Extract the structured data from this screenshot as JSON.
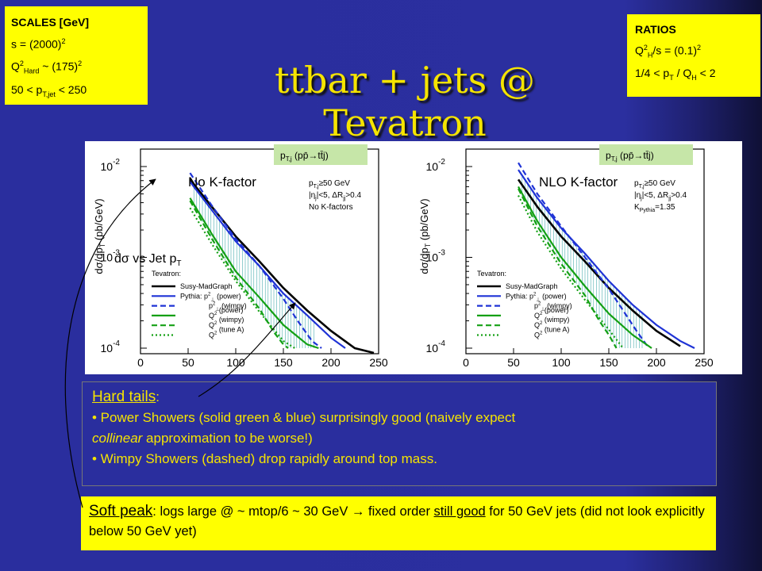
{
  "title": "ttbar + jets @ Tevatron",
  "scales": {
    "heading": "SCALES [GeV]",
    "line1": "s = (2000)",
    "line1_sup": "2",
    "line2_a": "Q",
    "line2_sup": "2",
    "line2_sub": "Hard",
    "line2_b": " ~ (175)",
    "line2_sup2": "2",
    "line3_a": "50 < p",
    "line3_sub": "T,jet",
    "line3_b": " < 250"
  },
  "ratios": {
    "heading": "RATIOS",
    "line1_a": "Q",
    "line1_sup": "2",
    "line1_sub": "H",
    "line1_b": "/s = (0.1)",
    "line1_sup2": "2",
    "line2_a": "1/4 < p",
    "line2_sub": "T",
    "line2_b": " / Q",
    "line2_sub2": "H",
    "line2_c": " < 2"
  },
  "annotations": {
    "left_panel": "No K-factor",
    "right_panel": "NLO K-factor",
    "left_sub": "dσ vs Jet p",
    "left_sub_t": "T"
  },
  "hard": {
    "title": "Hard tails",
    "title_colon": ":",
    "b1_a": "• Power Showers (solid green & blue) surprisingly good (naively expect",
    "b1_b": "collinear",
    "b1_c": " approximation to be worse!)",
    "b2": "• Wimpy Showers (dashed) drop rapidly around top mass."
  },
  "soft": {
    "title": "Soft peak",
    "part1": ": logs large @ ~ mtop/6 ~ 30 GeV ",
    "arrow": "→",
    "part2": " fixed order ",
    "underline": "still good",
    "part3": " for 50 GeV jets (did not look explicitly below 50 GeV yet)"
  },
  "chart_data": [
    {
      "type": "line",
      "ylabel": "dσ/dp",
      "ylabel_sub": "T",
      "ylabel_unit": "(pb/GeV)",
      "yscale": "log",
      "ylim": [
        0.0001,
        0.01
      ],
      "xlim": [
        0,
        250
      ],
      "x_ticks": [
        0,
        50,
        100,
        150,
        200,
        250
      ],
      "y_ticks": [
        {
          "base": "10",
          "exp": "-2",
          "value": 0.01
        },
        {
          "base": "10",
          "exp": "-3",
          "value": 0.001
        },
        {
          "base": "10",
          "exp": "-4",
          "value": 0.0001
        }
      ],
      "legend_tag": {
        "a": "p",
        "sub": "T,j",
        "b": " (pp̄→tt̄j)"
      },
      "cuts": [
        {
          "a": "p",
          "sub": "T,j",
          "b": "≥50 GeV"
        },
        {
          "a": "|η",
          "sub": "j",
          "b": "|<5, ΔR",
          "sub2": "jj",
          "c": ">0.4"
        },
        {
          "a": "No K-factors"
        }
      ],
      "legend_title": "Tevatron:",
      "legend_entries": [
        {
          "label": "Susy-MadGraph"
        },
        {
          "label": "Pythia: p",
          "sup": "2",
          "sub": "⊥",
          "rest": " (power)"
        },
        {
          "label": "p",
          "sup": "2",
          "sub": "⊥",
          "rest": " (wimpy)"
        },
        {
          "label": "Q",
          "sup": "2",
          "rest": " (power)"
        },
        {
          "label": "Q",
          "sup": "2",
          "rest": " (wimpy)"
        },
        {
          "label": "Q",
          "sup": "2",
          "rest": " (tune A)"
        }
      ],
      "series": [
        {
          "name": "Susy-MadGraph",
          "color": "#000000",
          "dash": "solid",
          "x": [
            52,
            75,
            100,
            125,
            150,
            175,
            200,
            225,
            245
          ],
          "y": [
            0.0072,
            0.0036,
            0.0017,
            0.0009,
            0.00046,
            0.00026,
            0.000155,
            0.0001,
            8e-05
          ]
        },
        {
          "name": "Pythia p⊥² (power)",
          "color": "#1f33d6",
          "dash": "solid",
          "x": [
            52,
            75,
            100,
            125,
            150,
            175,
            200,
            215
          ],
          "y": [
            0.0068,
            0.0033,
            0.0015,
            0.0008,
            0.0004,
            0.00023,
            0.00013,
            0.0001
          ]
        },
        {
          "name": "Pythia p⊥² (wimpy)",
          "color": "#1f33d6",
          "dash": "dashed",
          "x": [
            52,
            75,
            100,
            125,
            150,
            165,
            180,
            190
          ],
          "y": [
            0.0085,
            0.0037,
            0.0016,
            0.0008,
            0.00035,
            0.0002,
            0.00012,
            0.0001
          ]
        },
        {
          "name": "Q² (power)",
          "color": "#14a014",
          "dash": "solid",
          "x": [
            52,
            75,
            100,
            125,
            150,
            175,
            187
          ],
          "y": [
            0.0045,
            0.0018,
            0.0007,
            0.00036,
            0.00018,
            0.00011,
            0.0001
          ]
        },
        {
          "name": "Q² (wimpy)",
          "color": "#14a014",
          "dash": "dashed",
          "x": [
            52,
            75,
            100,
            125,
            140,
            150,
            155
          ],
          "y": [
            0.0042,
            0.0016,
            0.0006,
            0.00027,
            0.00015,
            0.00011,
            0.0001
          ]
        },
        {
          "name": "Q² (tune A)",
          "color": "#14a014",
          "dash": "dotted",
          "x": [
            52,
            75,
            100,
            125,
            150,
            162
          ],
          "y": [
            0.0035,
            0.0014,
            0.00055,
            0.00025,
            0.00012,
            0.0001
          ]
        }
      ]
    },
    {
      "type": "line",
      "ylabel": "dσ/dp",
      "ylabel_sub": "T",
      "ylabel_unit": "(pb/GeV)",
      "yscale": "log",
      "ylim": [
        0.0001,
        0.01
      ],
      "xlim": [
        0,
        250
      ],
      "x_ticks": [
        0,
        50,
        100,
        150,
        200,
        250
      ],
      "y_ticks": [
        {
          "base": "10",
          "exp": "-2",
          "value": 0.01
        },
        {
          "base": "10",
          "exp": "-3",
          "value": 0.001
        },
        {
          "base": "10",
          "exp": "-4",
          "value": 0.0001
        }
      ],
      "legend_tag": {
        "a": "p",
        "sub": "T,j",
        "b": " (pp̄→tt̄j)"
      },
      "cuts": [
        {
          "a": "p",
          "sub": "T,j",
          "b": "≥50 GeV"
        },
        {
          "a": "|η",
          "sub": "j",
          "b": "|<5, ΔR",
          "sub2": "jj",
          "c": ">0.4"
        },
        {
          "a": "K",
          "sub": "Pythia",
          "b": "=1.35"
        }
      ],
      "legend_title": "Tevatron:",
      "legend_entries": [
        {
          "label": "Susy-MadGraph"
        },
        {
          "label": "Pythia: p",
          "sup": "2",
          "sub": "⊥",
          "rest": " (power)"
        },
        {
          "label": "p",
          "sup": "2",
          "sub": "⊥",
          "rest": " (wimpy)"
        },
        {
          "label": "Q",
          "sup": "2",
          "rest": " (power)"
        },
        {
          "label": "Q",
          "sup": "2",
          "rest": " (wimpy)"
        },
        {
          "label": "Q",
          "sup": "2",
          "rest": " (tune A)"
        }
      ],
      "series": [
        {
          "name": "Susy-MadGraph",
          "color": "#000000",
          "dash": "solid",
          "x": [
            55,
            75,
            100,
            125,
            150,
            175,
            200,
            225
          ],
          "y": [
            0.0072,
            0.0036,
            0.0017,
            0.0009,
            0.00046,
            0.00026,
            0.000155,
            0.000105
          ]
        },
        {
          "name": "Pythia p⊥² (power)",
          "color": "#1f33d6",
          "dash": "solid",
          "x": [
            55,
            75,
            100,
            125,
            150,
            175,
            200,
            225,
            240
          ],
          "y": [
            0.0092,
            0.0045,
            0.0021,
            0.0011,
            0.00055,
            0.0003,
            0.00018,
            0.00012,
            0.0001
          ]
        },
        {
          "name": "Pythia p⊥² (wimpy)",
          "color": "#1f33d6",
          "dash": "dashed",
          "x": [
            55,
            75,
            100,
            125,
            150,
            165,
            180,
            192
          ],
          "y": [
            0.011,
            0.005,
            0.0022,
            0.001,
            0.00045,
            0.00026,
            0.00015,
            0.0001
          ]
        },
        {
          "name": "Q² (power)",
          "color": "#14a014",
          "dash": "solid",
          "x": [
            55,
            75,
            100,
            125,
            150,
            175,
            195
          ],
          "y": [
            0.006,
            0.0025,
            0.001,
            0.00048,
            0.00024,
            0.00014,
            0.0001
          ]
        },
        {
          "name": "Q² (wimpy)",
          "color": "#14a014",
          "dash": "dashed",
          "x": [
            55,
            75,
            100,
            125,
            140,
            150,
            158
          ],
          "y": [
            0.0057,
            0.0022,
            0.00085,
            0.00038,
            0.0002,
            0.00014,
            0.0001
          ]
        },
        {
          "name": "Q² (tune A)",
          "color": "#14a014",
          "dash": "dotted",
          "x": [
            55,
            75,
            100,
            125,
            150,
            165
          ],
          "y": [
            0.0048,
            0.0019,
            0.00075,
            0.00034,
            0.00016,
            0.0001
          ]
        }
      ]
    }
  ]
}
